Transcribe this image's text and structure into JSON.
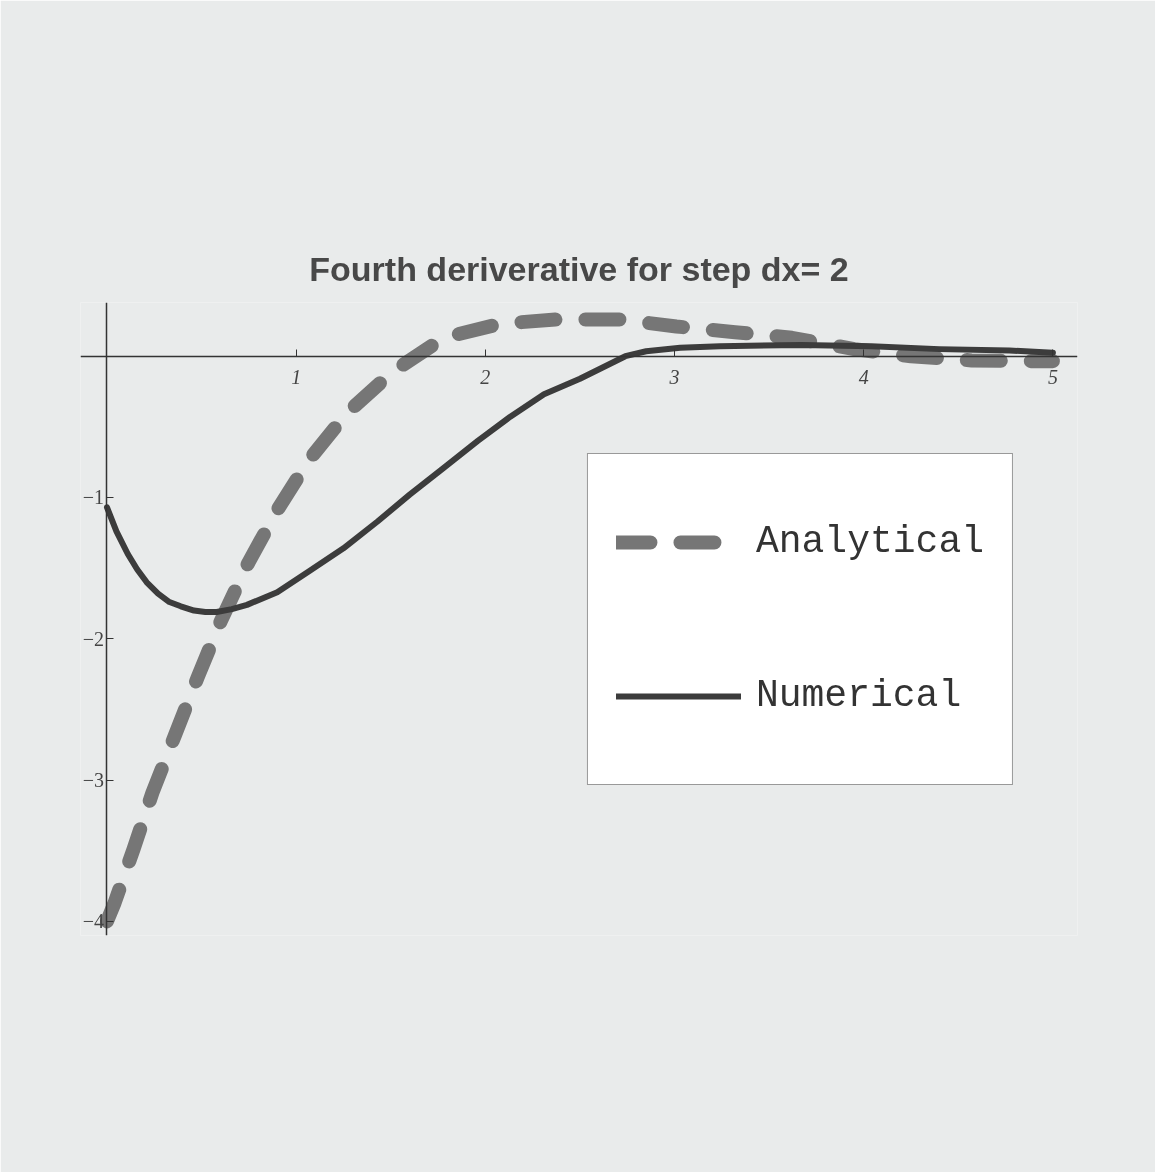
{
  "chart_data": {
    "type": "line",
    "title": "Fourth deriverative for step dx= 2",
    "xlim": [
      -0.14,
      5.13
    ],
    "ylim": [
      -4.1,
      0.38
    ],
    "xticks": [
      1,
      2,
      3,
      4,
      5
    ],
    "yticks": [
      -1,
      -2,
      -3,
      -4
    ],
    "grid": false,
    "legend": "right",
    "series": [
      {
        "name": "Analytical",
        "color": "#767676",
        "line_style": "dashed",
        "x": [
          0,
          0.04,
          0.14,
          0.24,
          0.36,
          0.48,
          0.6,
          0.74,
          0.9,
          1.07,
          1.27,
          1.51,
          1.78,
          2.08,
          2.38,
          2.71,
          3.01,
          3.32,
          3.62,
          3.95,
          4.25,
          4.57,
          4.88,
          5.0
        ],
        "values": [
          -4.0,
          -3.87,
          -3.49,
          -3.09,
          -2.68,
          -2.27,
          -1.88,
          -1.48,
          -1.09,
          -0.73,
          -0.4,
          -0.11,
          0.13,
          0.23,
          0.26,
          0.26,
          0.21,
          0.17,
          0.13,
          0.05,
          0.0,
          -0.03,
          -0.035,
          -0.035
        ]
      },
      {
        "name": "Numerical",
        "color": "#3c3c3c",
        "line_style": "solid",
        "x": [
          0,
          0.05,
          0.11,
          0.16,
          0.21,
          0.27,
          0.33,
          0.39,
          0.46,
          0.52,
          0.58,
          0.66,
          0.74,
          0.9,
          1.07,
          1.25,
          1.43,
          1.6,
          1.78,
          1.96,
          2.13,
          2.31,
          2.5,
          2.62,
          2.74,
          2.85,
          3.03,
          3.24,
          3.67,
          4.04,
          4.4,
          4.77,
          5.0
        ],
        "values": [
          -1.07,
          -1.24,
          -1.4,
          -1.51,
          -1.6,
          -1.68,
          -1.74,
          -1.77,
          -1.8,
          -1.81,
          -1.81,
          -1.79,
          -1.76,
          -1.67,
          -1.52,
          -1.36,
          -1.17,
          -0.98,
          -0.79,
          -0.6,
          -0.43,
          -0.27,
          -0.16,
          -0.08,
          0.0,
          0.035,
          0.06,
          0.07,
          0.08,
          0.07,
          0.05,
          0.04,
          0.025
        ]
      }
    ]
  }
}
